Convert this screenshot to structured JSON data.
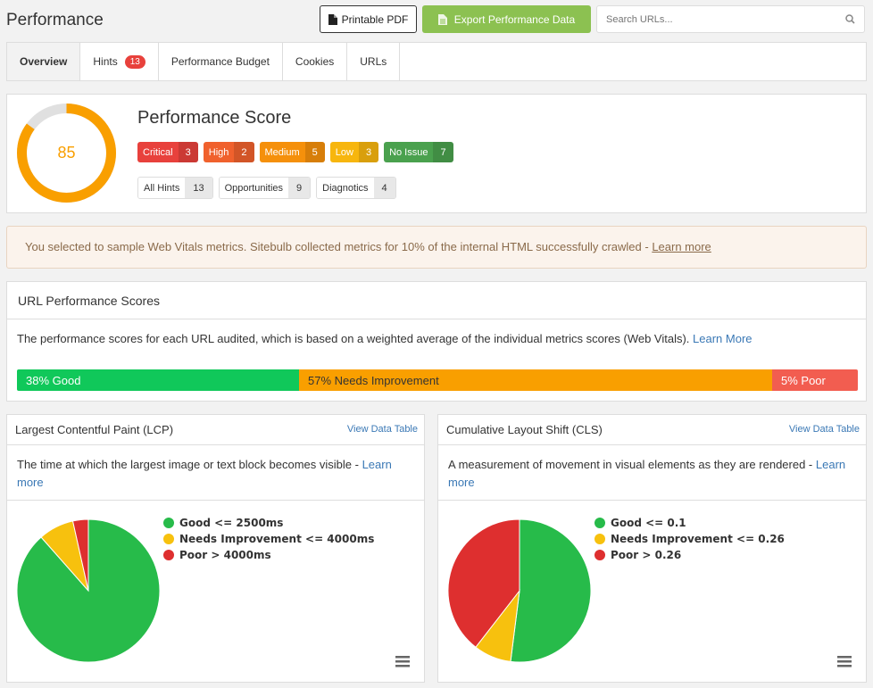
{
  "header": {
    "title": "Performance",
    "pdf_label": "Printable PDF",
    "export_label": "Export Performance Data",
    "search_placeholder": "Search URLs..."
  },
  "tabs": [
    {
      "label": "Overview",
      "active": true
    },
    {
      "label": "Hints",
      "badge": "13"
    },
    {
      "label": "Performance Budget"
    },
    {
      "label": "Cookies"
    },
    {
      "label": "URLs"
    }
  ],
  "score": {
    "title": "Performance Score",
    "value": "85",
    "fraction": 0.85,
    "severities": [
      {
        "label": "Critical",
        "count": "3",
        "color": "#e8413c"
      },
      {
        "label": "High",
        "count": "2",
        "color": "#f0612d"
      },
      {
        "label": "Medium",
        "count": "5",
        "color": "#f5900b"
      },
      {
        "label": "Low",
        "count": "3",
        "color": "#f7b60e"
      },
      {
        "label": "No Issue",
        "count": "7",
        "color": "#4aa14e"
      }
    ],
    "hints": [
      {
        "label": "All Hints",
        "count": "13"
      },
      {
        "label": "Opportunities",
        "count": "9"
      },
      {
        "label": "Diagnotics",
        "count": "4"
      }
    ]
  },
  "notice": {
    "text": "You selected to sample Web Vitals metrics. Sitebulb collected metrics for 10% of the internal HTML successfully crawled - ",
    "link": "Learn more"
  },
  "url_scores": {
    "title": "URL Performance Scores",
    "description": "The performance scores for each URL audited, which is based on a weighted average of the individual metrics scores (Web Vitals). ",
    "link": "Learn More",
    "segments": [
      {
        "label": "38% Good",
        "percent": 38,
        "color": "#10c85a"
      },
      {
        "label": "57% Needs Improvement",
        "percent": 57,
        "color": "#f99f00"
      },
      {
        "label": "5% Poor",
        "percent": 5,
        "color": "#f25d50"
      }
    ]
  },
  "charts": [
    {
      "title": "Largest Contentful Paint (LCP)",
      "view_label": "View Data Table",
      "description": "The time at which the largest image or text block becomes visible - ",
      "link": "Learn more",
      "legend": [
        "Good <= 2500ms",
        "Needs Improvement <= 4000ms",
        "Poor > 4000ms"
      ]
    },
    {
      "title": "Cumulative Layout Shift (CLS)",
      "view_label": "View Data Table",
      "description": "A measurement of movement in visual elements as they are rendered - ",
      "link": "Learn more",
      "legend": [
        "Good <= 0.1",
        "Needs Improvement <= 0.26",
        "Poor > 0.26"
      ]
    }
  ],
  "chart_data": [
    {
      "type": "pie",
      "categories": [
        "Good",
        "Needs Improvement",
        "Poor"
      ],
      "values": [
        88.5,
        8,
        3.5
      ],
      "colors": [
        "#27bb4a",
        "#f7c10e",
        "#de2f2f"
      ]
    },
    {
      "type": "pie",
      "categories": [
        "Good",
        "Needs Improvement",
        "Poor"
      ],
      "values": [
        52,
        8.5,
        39.5
      ],
      "colors": [
        "#27bb4a",
        "#f7c10e",
        "#de2f2f"
      ]
    }
  ]
}
